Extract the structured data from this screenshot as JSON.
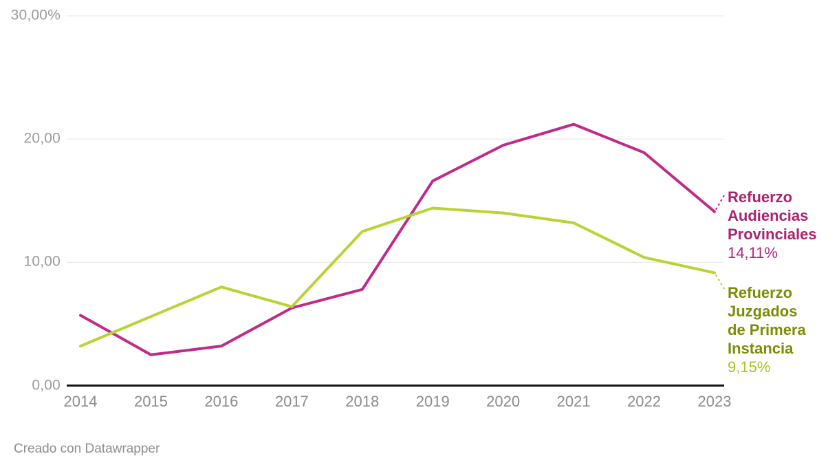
{
  "chart_data": {
    "type": "line",
    "title": "",
    "xlabel": "",
    "ylabel": "",
    "ylim": [
      0,
      30
    ],
    "grid": "horizontal",
    "legend_position": "right-edge-annotations",
    "categories": [
      "2014",
      "2015",
      "2016",
      "2017",
      "2018",
      "2019",
      "2020",
      "2021",
      "2022",
      "2023"
    ],
    "y_ticks": [
      {
        "value": 0,
        "label": "0,00"
      },
      {
        "value": 10,
        "label": "10,00"
      },
      {
        "value": 20,
        "label": "20,00"
      },
      {
        "value": 30,
        "label": "30,00%"
      }
    ],
    "series": [
      {
        "name": "Refuerzo Audiencias Provinciales",
        "label_lines": [
          "Refuerzo",
          "Audiencias",
          "Provinciales"
        ],
        "value_label": "14,11%",
        "color": "#c02a8a",
        "label_color": "#a8246f",
        "value_color": "#b5267f",
        "values": [
          5.7,
          2.5,
          3.2,
          6.3,
          7.8,
          16.6,
          19.5,
          21.2,
          18.9,
          14.11
        ]
      },
      {
        "name": "Refuerzo Juzgados de Primera Instancia",
        "label_lines": [
          "Refuerzo",
          "Juzgados",
          "de Primera",
          "Instancia"
        ],
        "value_label": "9,15%",
        "color": "#b7d433",
        "label_color": "#7d8b05",
        "value_color": "#a9c21d",
        "values": [
          3.2,
          5.6,
          8.0,
          6.4,
          12.5,
          14.4,
          14.0,
          13.2,
          10.4,
          9.15
        ]
      }
    ]
  },
  "footer": {
    "credit": "Creado con Datawrapper"
  },
  "colors": {
    "background": "#ffffff",
    "grid": "#e6e6e6",
    "axis": "#141414",
    "y_tick_text": "#9a9a9a",
    "x_tick_text": "#8b8b8b",
    "footer_text": "#8d8d8d"
  }
}
